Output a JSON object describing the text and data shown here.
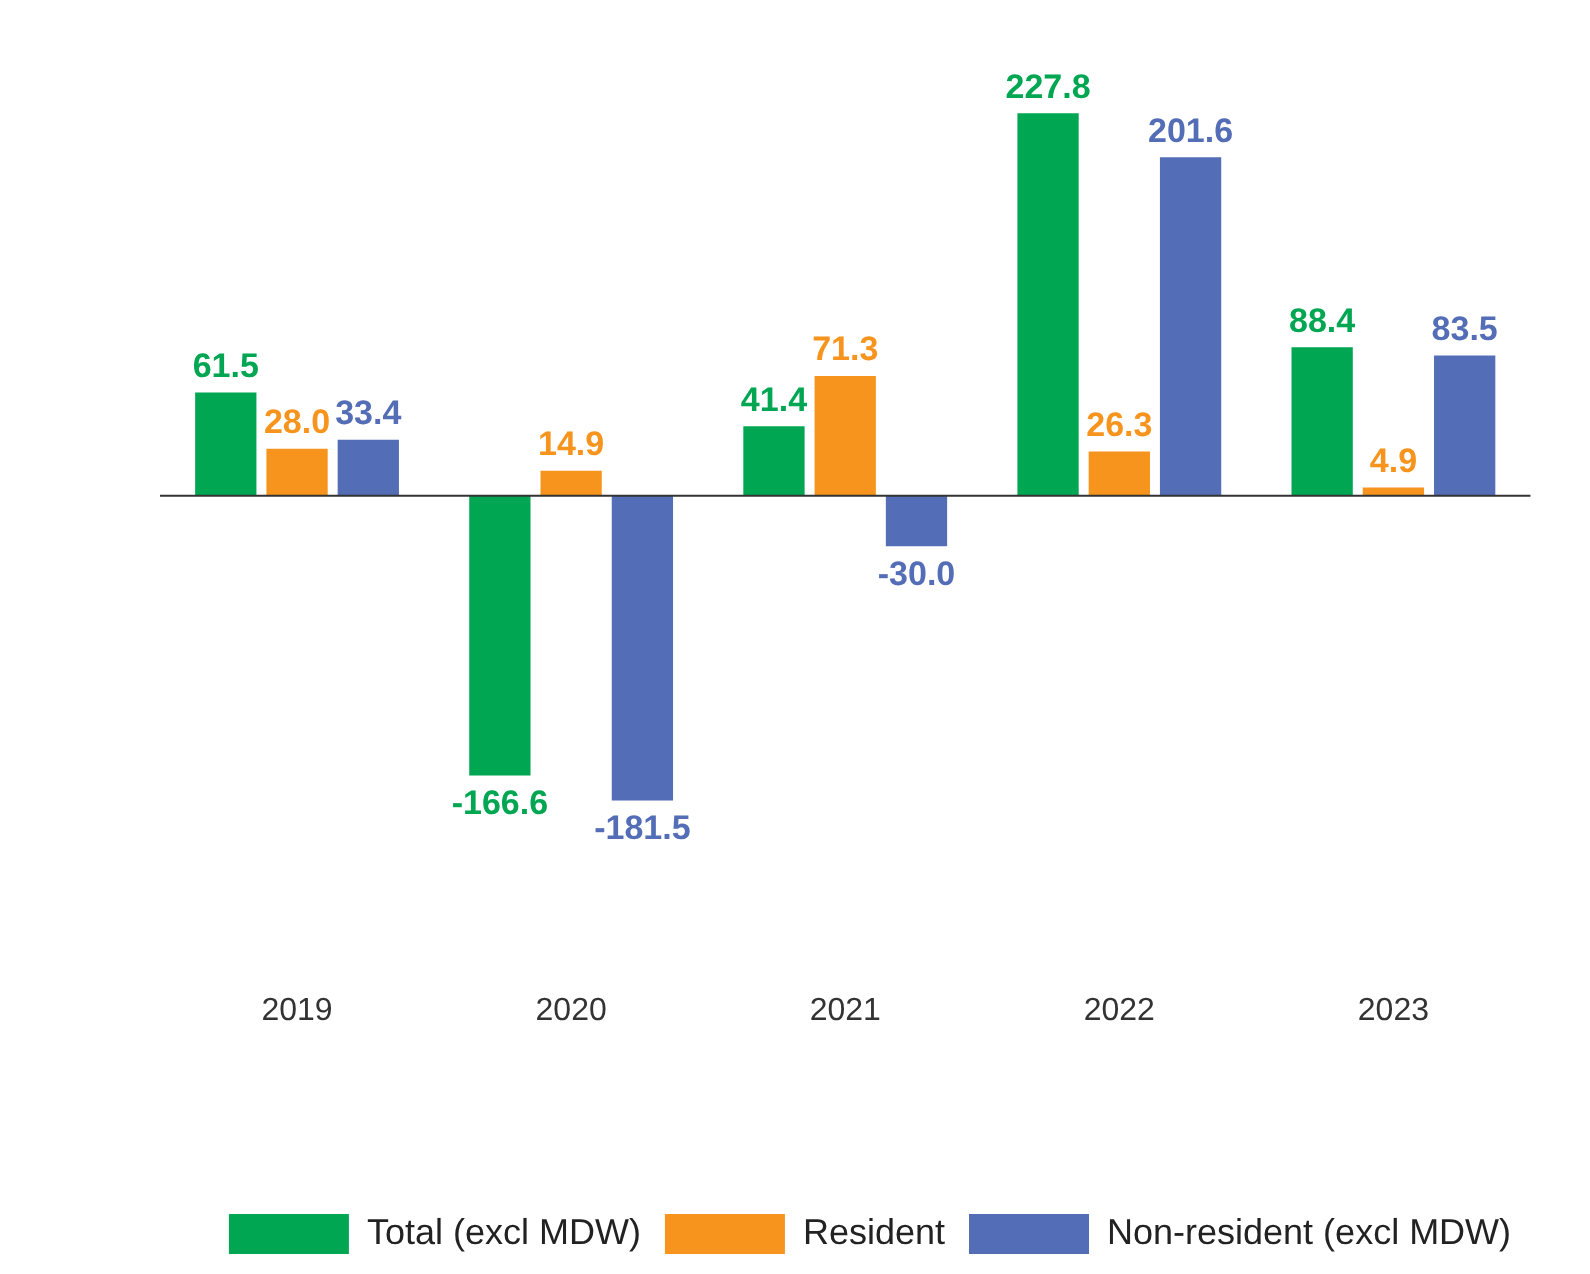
{
  "chart_data": {
    "type": "bar",
    "categories": [
      "2019",
      "2020",
      "2021",
      "2022",
      "2023"
    ],
    "series": [
      {
        "name": "Total (excl MDW)",
        "color": "#00a651",
        "values": [
          61.5,
          -166.6,
          41.4,
          227.8,
          88.4
        ],
        "value_labels": [
          "61.5",
          "-166.6",
          "41.4",
          "227.8",
          "88.4"
        ]
      },
      {
        "name": "Resident",
        "color": "#f7941d",
        "values": [
          28.0,
          14.9,
          71.3,
          26.3,
          4.9
        ],
        "value_labels": [
          "28.0",
          "14.9",
          "71.3",
          "26.3",
          "4.9"
        ]
      },
      {
        "name": "Non-resident (excl MDW)",
        "color": "#536db6",
        "values": [
          33.4,
          -181.5,
          -30.0,
          201.6,
          83.5
        ],
        "value_labels": [
          "33.4",
          "-181.5",
          "-30.0",
          "201.6",
          "83.5"
        ]
      }
    ],
    "legend": "bottom",
    "grid": false
  }
}
